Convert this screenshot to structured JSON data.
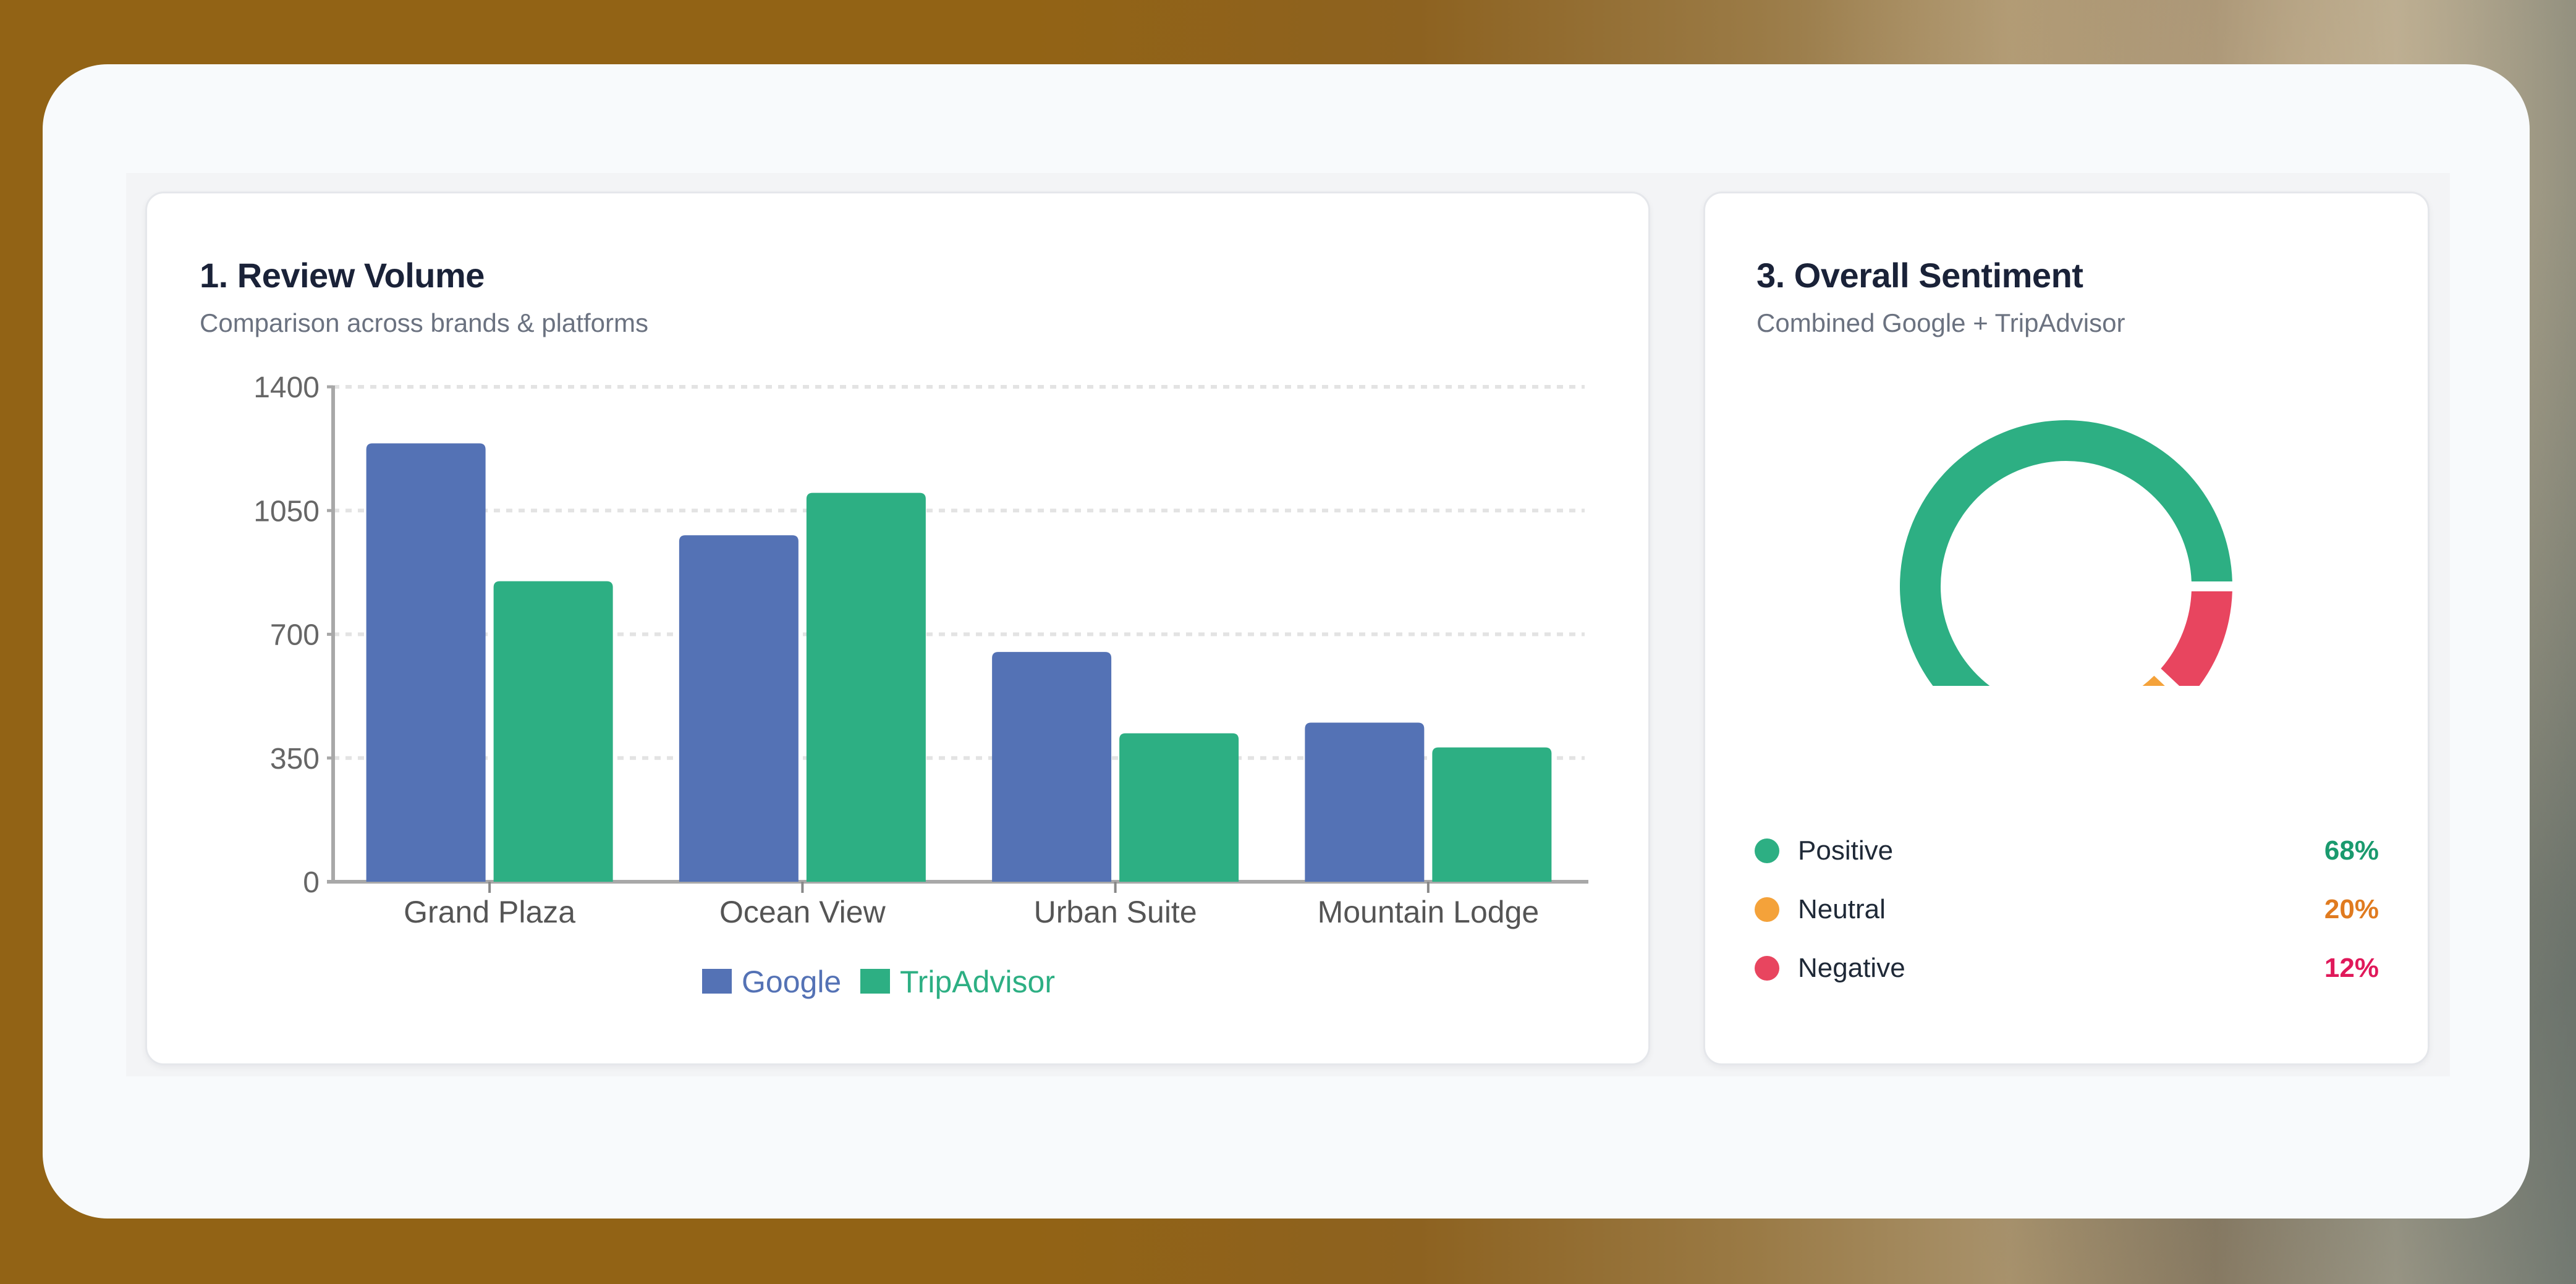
{
  "review_volume": {
    "title": "1. Review Volume",
    "subtitle": "Comparison across brands & platforms",
    "legend": [
      {
        "label": "Google",
        "color": "#5472b5"
      },
      {
        "label": "TripAdvisor",
        "color": "#2daf83"
      }
    ]
  },
  "sentiment": {
    "title": "3. Overall Sentiment",
    "subtitle": "Combined Google + TripAdvisor",
    "items": [
      {
        "label": "Positive",
        "value": "68%",
        "dot_color": "#2daf83",
        "value_color": "#1a9a6e"
      },
      {
        "label": "Neutral",
        "value": "20%",
        "dot_color": "#f4a23a",
        "value_color": "#e07b20"
      },
      {
        "label": "Negative",
        "value": "12%",
        "dot_color": "#e8455f",
        "value_color": "#e0195a"
      }
    ]
  },
  "chart_data": [
    {
      "type": "bar",
      "title": "1. Review Volume",
      "subtitle": "Comparison across brands & platforms",
      "categories": [
        "Grand Plaza",
        "Ocean View",
        "Urban Suite",
        "Mountain Lodge"
      ],
      "series": [
        {
          "name": "Google",
          "color": "#5472b5",
          "values": [
            1240,
            980,
            650,
            450
          ]
        },
        {
          "name": "TripAdvisor",
          "color": "#2daf83",
          "values": [
            850,
            1100,
            420,
            380
          ]
        }
      ],
      "xlabel": "",
      "ylabel": "",
      "ylim": [
        0,
        1400
      ],
      "yticks": [
        0,
        350,
        700,
        1050,
        1400
      ],
      "grid": "horizontal dashed",
      "legend_position": "bottom"
    },
    {
      "type": "pie",
      "variant": "donut",
      "title": "3. Overall Sentiment",
      "subtitle": "Combined Google + TripAdvisor",
      "categories": [
        "Positive",
        "Neutral",
        "Negative"
      ],
      "values": [
        68,
        20,
        12
      ],
      "colors": [
        "#2daf83",
        "#f4a23a",
        "#e8455f"
      ],
      "unit": "%",
      "legend_position": "bottom"
    }
  ]
}
